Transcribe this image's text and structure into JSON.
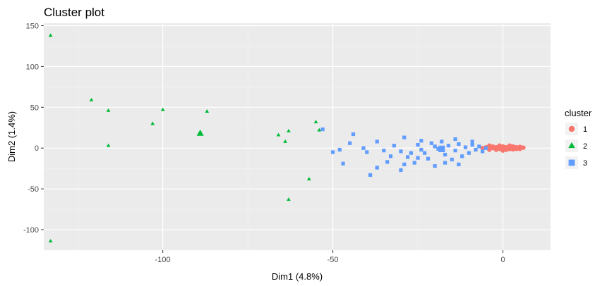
{
  "chart_data": {
    "type": "scatter",
    "title": "Cluster plot",
    "xlabel": "Dim1 (4.8%)",
    "ylabel": "Dim2 (1.4%)",
    "xlim": [
      -135,
      14
    ],
    "ylim": [
      -125,
      153
    ],
    "xticks": [
      -100,
      -50,
      0
    ],
    "yticks": [
      -100,
      -50,
      0,
      50,
      100,
      150
    ],
    "grid": true,
    "legend": {
      "title": "cluster",
      "position": "right"
    },
    "series": [
      {
        "name": "1",
        "shape": "circle",
        "color": "#F8766D",
        "points": [
          [
            -3,
            0
          ],
          [
            -2,
            1
          ],
          [
            -1,
            -1
          ],
          [
            0,
            0
          ],
          [
            1,
            1
          ],
          [
            2,
            -1
          ],
          [
            3,
            0
          ],
          [
            4,
            1
          ],
          [
            5,
            0
          ],
          [
            6,
            0.5
          ],
          [
            -4,
            -2
          ],
          [
            -3,
            2
          ],
          [
            -2,
            -2
          ],
          [
            0,
            2
          ],
          [
            1,
            -2
          ],
          [
            2,
            2
          ],
          [
            3,
            -1.5
          ],
          [
            4,
            -1
          ],
          [
            5,
            1.5
          ],
          [
            -5,
            1
          ],
          [
            -4,
            3
          ],
          [
            -1,
            3
          ],
          [
            0,
            -3
          ],
          [
            2,
            3
          ],
          [
            3,
            2
          ],
          [
            1,
            0
          ],
          [
            -2,
            0
          ],
          [
            4,
            0
          ],
          [
            -6,
            0
          ],
          [
            5,
            -1
          ]
        ],
        "centroid": [
          2,
          0
        ]
      },
      {
        "name": "2",
        "shape": "triangle",
        "color": "#00BA38",
        "points": [
          [
            -133,
            138
          ],
          [
            -121,
            59
          ],
          [
            -116,
            46
          ],
          [
            -116,
            3
          ],
          [
            -103,
            30
          ],
          [
            -100,
            47
          ],
          [
            -87,
            45
          ],
          [
            -66,
            16
          ],
          [
            -64,
            8
          ],
          [
            -63,
            21
          ],
          [
            -63,
            -63
          ],
          [
            -57,
            -38
          ],
          [
            -55,
            32
          ],
          [
            -54,
            22
          ],
          [
            -133,
            -114
          ]
        ],
        "centroid": [
          -89,
          18
        ]
      },
      {
        "name": "3",
        "shape": "square",
        "color": "#619CFF",
        "points": [
          [
            -53,
            23
          ],
          [
            -50,
            -5
          ],
          [
            -48,
            -2
          ],
          [
            -47,
            -19
          ],
          [
            -45,
            6
          ],
          [
            -44,
            17
          ],
          [
            -41,
            0
          ],
          [
            -40,
            -5
          ],
          [
            -39,
            -33
          ],
          [
            -37,
            -24
          ],
          [
            -37,
            8
          ],
          [
            -35,
            -3
          ],
          [
            -34,
            -17
          ],
          [
            -33,
            -10
          ],
          [
            -32,
            3
          ],
          [
            -30,
            -27
          ],
          [
            -30,
            -4
          ],
          [
            -29,
            13
          ],
          [
            -28,
            -11
          ],
          [
            -27,
            -6
          ],
          [
            -26,
            -18
          ],
          [
            -25,
            4
          ],
          [
            -24,
            9
          ],
          [
            -24,
            -2
          ],
          [
            -22,
            -13
          ],
          [
            -21,
            6
          ],
          [
            -20,
            -22
          ],
          [
            -19,
            -1
          ],
          [
            -18,
            8
          ],
          [
            -17,
            -8
          ],
          [
            -16,
            3
          ],
          [
            -15,
            -14
          ],
          [
            -14,
            11
          ],
          [
            -14,
            -3
          ],
          [
            -13,
            5
          ],
          [
            -12,
            -10
          ],
          [
            -11,
            1
          ],
          [
            -10,
            -6
          ],
          [
            -9,
            4
          ],
          [
            -8,
            -2
          ],
          [
            -7,
            2
          ],
          [
            -6,
            -4
          ],
          [
            -5,
            0
          ],
          [
            -20,
            2
          ],
          [
            -23,
            -6
          ],
          [
            -17,
            -18
          ],
          [
            -13,
            -20
          ],
          [
            -9,
            8
          ],
          [
            -25,
            -12
          ],
          [
            -29,
            -20
          ]
        ],
        "centroid": [
          -18,
          -1
        ]
      }
    ]
  }
}
